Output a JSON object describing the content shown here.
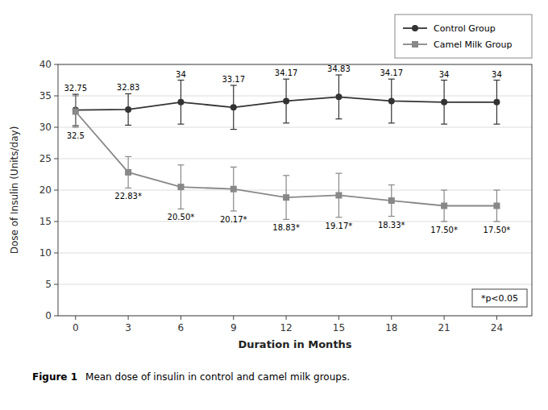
{
  "chart_data": {
    "type": "line",
    "x_label": "Duration in Months",
    "y_label": "Dose of Insulin (Units/day)",
    "x": [
      0,
      3,
      6,
      9,
      12,
      15,
      18,
      21,
      24
    ],
    "series": [
      {
        "name": "Control Group",
        "color": "#333333",
        "marker": "circle",
        "line_style": "solid",
        "values": [
          32.75,
          32.83,
          34.0,
          33.17,
          34.17,
          34.83,
          34.17,
          34.0,
          34.0
        ],
        "errors": [
          2.5,
          2.5,
          3.5,
          3.5,
          3.5,
          3.5,
          3.5,
          3.5,
          3.5
        ],
        "value_labels": [
          "32.75",
          "32.83",
          "34",
          "33.17",
          "34.17",
          "34.83",
          "34.17",
          "34",
          "34"
        ]
      },
      {
        "name": "Camel Milk Group",
        "color": "#888888",
        "marker": "square",
        "line_style": "solid",
        "values": [
          32.5,
          22.83,
          20.5,
          20.17,
          18.83,
          19.17,
          18.33,
          17.5,
          17.5
        ],
        "errors": [
          2.5,
          2.5,
          3.5,
          3.5,
          3.5,
          3.5,
          2.5,
          2.5,
          2.5
        ],
        "value_labels": [
          "32.5",
          "22.83*",
          "20.50*",
          "20.17*",
          "18.83*",
          "19.17*",
          "18.33*",
          "17.50*",
          "17.50*"
        ]
      }
    ],
    "xlim": [
      -1.0,
      26.0
    ],
    "ylim": [
      0,
      40
    ],
    "xticks": [
      0,
      3,
      6,
      9,
      12,
      15,
      18,
      21,
      24
    ],
    "yticks": [
      0,
      5,
      10,
      15,
      20,
      25,
      30,
      35,
      40
    ],
    "grid": true,
    "legend": "top-right",
    "data_labels": true,
    "annotations": [
      "*p<0.05"
    ],
    "caption": {
      "label": "Figure 1",
      "text": "Mean dose of insulin in control and camel milk groups."
    }
  }
}
